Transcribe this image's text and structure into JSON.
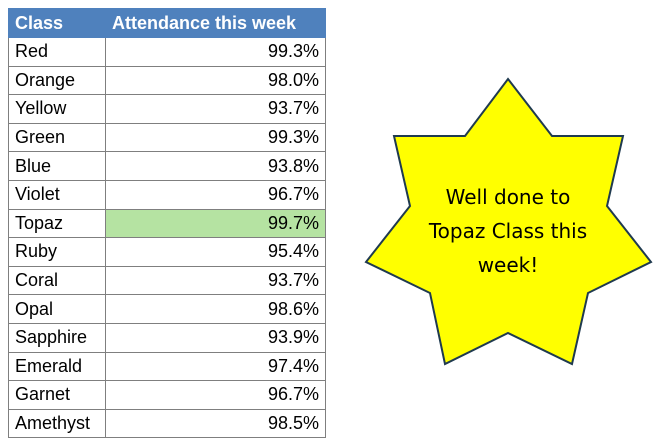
{
  "table": {
    "headers": [
      "Class",
      "Attendance this week"
    ],
    "rows": [
      {
        "class": "Red",
        "attendance": "99.3%"
      },
      {
        "class": "Orange",
        "attendance": "98.0%"
      },
      {
        "class": "Yellow",
        "attendance": "93.7%"
      },
      {
        "class": "Green",
        "attendance": "99.3%"
      },
      {
        "class": "Blue",
        "attendance": "93.8%"
      },
      {
        "class": "Violet",
        "attendance": "96.7%"
      },
      {
        "class": "Topaz",
        "attendance": "99.7%",
        "highlighted": true
      },
      {
        "class": "Ruby",
        "attendance": "95.4%"
      },
      {
        "class": "Coral",
        "attendance": "93.7%"
      },
      {
        "class": "Opal",
        "attendance": "98.6%"
      },
      {
        "class": "Sapphire",
        "attendance": "93.9%"
      },
      {
        "class": "Emerald",
        "attendance": "97.4%"
      },
      {
        "class": "Garnet",
        "attendance": "96.7%"
      },
      {
        "class": "Amethyst",
        "attendance": "98.5%"
      }
    ]
  },
  "star": {
    "lines": [
      "Well done to",
      "Topaz Class this",
      "week!"
    ],
    "fill": "#ffff00",
    "stroke": "#1f3a4f"
  },
  "colors": {
    "header": "#4f81bd",
    "highlight": "#b5e3a2"
  }
}
